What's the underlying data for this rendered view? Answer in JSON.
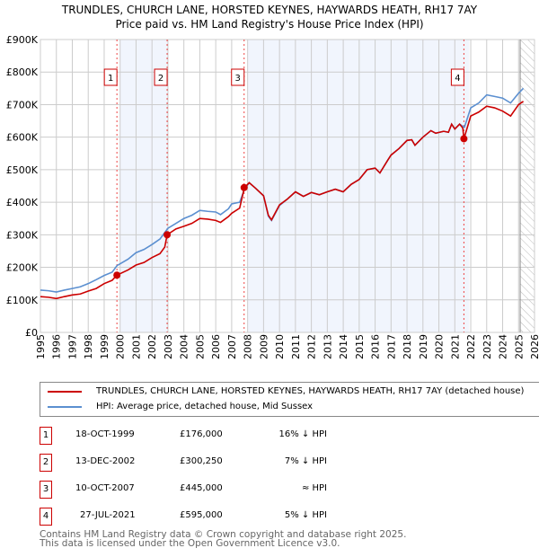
{
  "title": "TRUNDLES, CHURCH LANE, HORSTED KEYNES, HAYWARDS HEATH, RH17 7AY",
  "subtitle": "Price paid vs. HM Land Registry's House Price Index (HPI)",
  "chart_data": {
    "type": "line",
    "xlim": [
      1995,
      2026
    ],
    "ylim": [
      0,
      900000
    ],
    "x_ticks": [
      "1995",
      "1996",
      "1997",
      "1998",
      "1999",
      "2000",
      "2001",
      "2002",
      "2003",
      "2004",
      "2005",
      "2006",
      "2007",
      "2008",
      "2009",
      "2010",
      "2011",
      "2012",
      "2013",
      "2014",
      "2015",
      "2016",
      "2017",
      "2018",
      "2019",
      "2020",
      "2021",
      "2022",
      "2023",
      "2024",
      "2025",
      "2026"
    ],
    "y_ticks": [
      {
        "v": 0,
        "label": "£0"
      },
      {
        "v": 100000,
        "label": "£100K"
      },
      {
        "v": 200000,
        "label": "£200K"
      },
      {
        "v": 300000,
        "label": "£300K"
      },
      {
        "v": 400000,
        "label": "£400K"
      },
      {
        "v": 500000,
        "label": "£500K"
      },
      {
        "v": 600000,
        "label": "£600K"
      },
      {
        "v": 700000,
        "label": "£700K"
      },
      {
        "v": 800000,
        "label": "£800K"
      },
      {
        "v": 900000,
        "label": "£900K"
      }
    ],
    "grid": true,
    "shaded_ranges": [
      [
        2000,
        2003
      ],
      [
        2008,
        2021.9
      ]
    ],
    "forecast_hatch_from": 2025.1,
    "series": [
      {
        "name": "TRUNDLES, CHURCH LANE, HORSTED KEYNES, HAYWARDS HEATH, RH17 7AY (detached house)",
        "color": "#cc0000",
        "points": [
          [
            1995,
            110
          ],
          [
            1995.5,
            108
          ],
          [
            1996,
            104
          ],
          [
            1996.5,
            110
          ],
          [
            1997,
            115
          ],
          [
            1997.5,
            118
          ],
          [
            1998,
            127
          ],
          [
            1998.5,
            135
          ],
          [
            1999,
            150
          ],
          [
            1999.5,
            160
          ],
          [
            1999.8,
            176
          ],
          [
            2000.5,
            192
          ],
          [
            2001,
            207
          ],
          [
            2001.5,
            215
          ],
          [
            2002,
            230
          ],
          [
            2002.5,
            242
          ],
          [
            2002.8,
            262
          ],
          [
            2002.95,
            300
          ],
          [
            2003.5,
            318
          ],
          [
            2004,
            326
          ],
          [
            2004.5,
            335
          ],
          [
            2005,
            350
          ],
          [
            2005.5,
            348
          ],
          [
            2006,
            344
          ],
          [
            2006.3,
            338
          ],
          [
            2006.8,
            356
          ],
          [
            2007,
            366
          ],
          [
            2007.5,
            382
          ],
          [
            2007.8,
            445
          ],
          [
            2008.1,
            460
          ],
          [
            2008.5,
            443
          ],
          [
            2009,
            420
          ],
          [
            2009.3,
            360
          ],
          [
            2009.5,
            346
          ],
          [
            2010,
            392
          ],
          [
            2010.5,
            410
          ],
          [
            2011,
            432
          ],
          [
            2011.5,
            418
          ],
          [
            2012,
            430
          ],
          [
            2012.5,
            423
          ],
          [
            2013,
            432
          ],
          [
            2013.5,
            440
          ],
          [
            2014,
            432
          ],
          [
            2014.5,
            455
          ],
          [
            2015,
            470
          ],
          [
            2015.5,
            500
          ],
          [
            2016,
            505
          ],
          [
            2016.3,
            490
          ],
          [
            2016.8,
            530
          ],
          [
            2017,
            545
          ],
          [
            2017.5,
            565
          ],
          [
            2018,
            590
          ],
          [
            2018.3,
            592
          ],
          [
            2018.5,
            575
          ],
          [
            2018.8,
            590
          ],
          [
            2019,
            600
          ],
          [
            2019.5,
            620
          ],
          [
            2019.8,
            612
          ],
          [
            2020.3,
            618
          ],
          [
            2020.6,
            615
          ],
          [
            2020.8,
            640
          ],
          [
            2021,
            625
          ],
          [
            2021.3,
            640
          ],
          [
            2021.5,
            628
          ],
          [
            2021.57,
            595
          ],
          [
            2022,
            665
          ],
          [
            2022.5,
            677
          ],
          [
            2023,
            695
          ],
          [
            2023.5,
            690
          ],
          [
            2024,
            680
          ],
          [
            2024.5,
            665
          ],
          [
            2025,
            700
          ],
          [
            2025.3,
            710
          ]
        ]
      },
      {
        "name": "HPI: Average price, detached house, Mid Sussex",
        "color": "#5b8fd0",
        "points": [
          [
            1995,
            130
          ],
          [
            1995.5,
            128
          ],
          [
            1996,
            124
          ],
          [
            1996.5,
            130
          ],
          [
            1997,
            135
          ],
          [
            1997.5,
            140
          ],
          [
            1998,
            150
          ],
          [
            1998.5,
            162
          ],
          [
            1999,
            175
          ],
          [
            1999.5,
            185
          ],
          [
            1999.8,
            205
          ],
          [
            2000.5,
            225
          ],
          [
            2001,
            245
          ],
          [
            2001.5,
            255
          ],
          [
            2002,
            270
          ],
          [
            2002.5,
            287
          ],
          [
            2003,
            320
          ],
          [
            2003.5,
            335
          ],
          [
            2004,
            350
          ],
          [
            2004.5,
            360
          ],
          [
            2005,
            375
          ],
          [
            2005.5,
            372
          ],
          [
            2006,
            370
          ],
          [
            2006.3,
            362
          ],
          [
            2006.8,
            380
          ],
          [
            2007,
            395
          ],
          [
            2007.5,
            400
          ],
          [
            2007.8,
            440
          ],
          [
            2008.1,
            460
          ],
          [
            2008.5,
            443
          ],
          [
            2009,
            420
          ],
          [
            2009.3,
            357
          ],
          [
            2009.5,
            344
          ],
          [
            2010,
            390
          ],
          [
            2010.5,
            410
          ],
          [
            2011,
            432
          ],
          [
            2011.5,
            418
          ],
          [
            2012,
            430
          ],
          [
            2012.5,
            423
          ],
          [
            2013,
            432
          ],
          [
            2013.5,
            440
          ],
          [
            2014,
            432
          ],
          [
            2014.5,
            455
          ],
          [
            2015,
            470
          ],
          [
            2015.5,
            500
          ],
          [
            2016,
            505
          ],
          [
            2016.3,
            490
          ],
          [
            2016.8,
            530
          ],
          [
            2017,
            545
          ],
          [
            2017.5,
            565
          ],
          [
            2018,
            590
          ],
          [
            2018.3,
            592
          ],
          [
            2018.5,
            575
          ],
          [
            2018.8,
            590
          ],
          [
            2019,
            600
          ],
          [
            2019.5,
            620
          ],
          [
            2019.8,
            612
          ],
          [
            2020.3,
            618
          ],
          [
            2020.6,
            615
          ],
          [
            2020.8,
            640
          ],
          [
            2021,
            625
          ],
          [
            2021.3,
            640
          ],
          [
            2021.6,
            630
          ],
          [
            2022,
            690
          ],
          [
            2022.5,
            705
          ],
          [
            2023,
            730
          ],
          [
            2023.5,
            725
          ],
          [
            2024,
            720
          ],
          [
            2024.5,
            705
          ],
          [
            2025,
            735
          ],
          [
            2025.3,
            750
          ]
        ]
      }
    ],
    "sales": [
      {
        "n": "1",
        "x": 1999.8,
        "value": 176000
      },
      {
        "n": "2",
        "x": 2002.95,
        "value": 300250
      },
      {
        "n": "3",
        "x": 2007.78,
        "value": 445000
      },
      {
        "n": "4",
        "x": 2021.57,
        "value": 595000
      }
    ]
  },
  "legend": {
    "red": "TRUNDLES, CHURCH LANE, HORSTED KEYNES, HAYWARDS HEATH, RH17 7AY (detached house)",
    "blue": "HPI: Average price, detached house, Mid Sussex"
  },
  "table": [
    {
      "n": "1",
      "date": "18-OCT-1999",
      "price": "£176,000",
      "rel": "16% ↓ HPI"
    },
    {
      "n": "2",
      "date": "13-DEC-2002",
      "price": "£300,250",
      "rel": "7% ↓ HPI"
    },
    {
      "n": "3",
      "date": "10-OCT-2007",
      "price": "£445,000",
      "rel": "≈ HPI"
    },
    {
      "n": "4",
      "date": "27-JUL-2021",
      "price": "£595,000",
      "rel": "5% ↓ HPI"
    }
  ],
  "footer": {
    "line1": "Contains HM Land Registry data © Crown copyright and database right 2025.",
    "line2": "This data is licensed under the Open Government Licence v3.0."
  }
}
